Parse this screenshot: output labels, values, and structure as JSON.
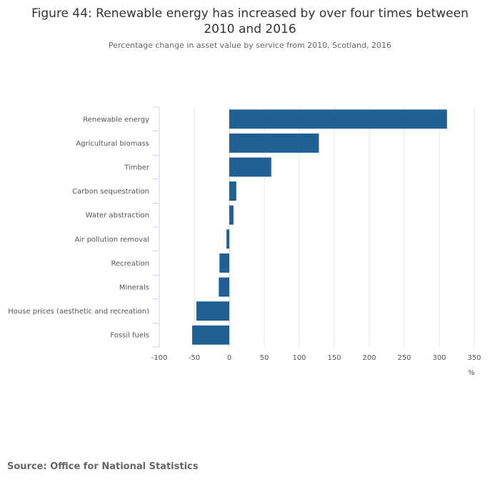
{
  "chart_data": {
    "type": "bar",
    "orientation": "horizontal",
    "title": "Figure 44: Renewable energy has increased by over four times between 2010 and 2016",
    "subtitle": "Percentage change in asset value by service from 2010, Scotland, 2016",
    "unit": "%",
    "categories": [
      "Renewable energy",
      "Agricultural biomass",
      "Timber",
      "Carbon sequestration",
      "Water abstraction",
      "Air pollution removal",
      "Recreation",
      "Minerals",
      "House prices (aesthetic and recreation)",
      "Fossil fuels"
    ],
    "values": [
      311,
      128,
      60,
      10,
      6,
      -4,
      -14,
      -15,
      -47,
      -53
    ],
    "xlim": [
      -100,
      350
    ],
    "ticks": [
      "-100",
      "-50",
      "0",
      "50",
      "100",
      "150",
      "200",
      "250",
      "300",
      "350"
    ],
    "grid": true,
    "color": "#206095"
  },
  "source": "Source: Office for National Statistics"
}
